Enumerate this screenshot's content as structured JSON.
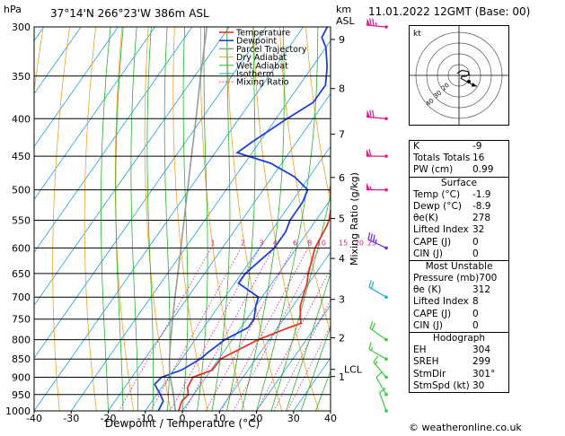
{
  "header": {
    "pressure_unit": "hPa",
    "location": "37°14'N  266°23'W  386m  ASL",
    "height_unit": "km",
    "height_unit2": "ASL",
    "datetime": "11.01.2022  12GMT  (Base: 00)"
  },
  "chart_data": {
    "type": "line",
    "xlabel": "Dewpoint / Temperature (°C)",
    "ylabel_left": "hPa",
    "ylabel_right": "Mixing Ratio (g/kg)",
    "xlim": [
      -40,
      40
    ],
    "ylim": [
      1000,
      300
    ],
    "x_ticks": [
      -40,
      -30,
      -20,
      -10,
      0,
      10,
      20,
      30,
      40
    ],
    "pressure_levels": [
      300,
      350,
      400,
      450,
      500,
      550,
      600,
      650,
      700,
      750,
      800,
      850,
      900,
      950,
      1000
    ],
    "km_ticks": [
      {
        "label": "9",
        "p": 312
      },
      {
        "label": "8",
        "p": 364
      },
      {
        "label": "7",
        "p": 420
      },
      {
        "label": "6",
        "p": 481
      },
      {
        "label": "5",
        "p": 547
      },
      {
        "label": "4",
        "p": 620
      },
      {
        "label": "3",
        "p": 705
      },
      {
        "label": "2",
        "p": 795
      },
      {
        "label": "1",
        "p": 898
      }
    ],
    "lcl": {
      "label": "LCL",
      "p": 878
    },
    "mixing_ratio_labels": [
      "1",
      "2",
      "3",
      "4",
      "6",
      "8",
      "10",
      "15",
      "20",
      "25"
    ],
    "mixing_ratio_values": [
      1,
      2,
      3,
      4,
      6,
      8,
      10,
      15,
      20,
      25
    ],
    "legend": [
      "Temperature",
      "Dewpoint",
      "Parcel Trajectory",
      "Dry Adiabat",
      "Wet Adiabat",
      "Isotherm",
      "Mixing Ratio"
    ],
    "legend_position": "top-center",
    "series": [
      {
        "name": "Temperature",
        "color": "#e8362a",
        "points": [
          [
            1000,
            -1.0
          ],
          [
            970,
            -2.0
          ],
          [
            950,
            -1.5
          ],
          [
            930,
            -3.0
          ],
          [
            900,
            -3.5
          ],
          [
            880,
            0.3
          ],
          [
            860,
            0.5
          ],
          [
            850,
            0.5
          ],
          [
            830,
            3.0
          ],
          [
            800,
            7.0
          ],
          [
            770,
            13.0
          ],
          [
            760,
            15.5
          ],
          [
            750,
            14.5
          ],
          [
            720,
            12.0
          ],
          [
            700,
            11.0
          ],
          [
            670,
            9.5
          ],
          [
            650,
            8.0
          ],
          [
            600,
            5.0
          ],
          [
            560,
            4.0
          ],
          [
            550,
            3.5
          ],
          [
            520,
            1.0
          ],
          [
            500,
            -2.0
          ],
          [
            450,
            -6.0
          ],
          [
            420,
            -8.0
          ],
          [
            400,
            -11.0
          ],
          [
            350,
            -17.5
          ],
          [
            320,
            -23.0
          ],
          [
            300,
            -27.0
          ]
        ]
      },
      {
        "name": "Dewpoint",
        "color": "#1e3fd6",
        "points": [
          [
            1000,
            -6.5
          ],
          [
            970,
            -7.0
          ],
          [
            950,
            -9.0
          ],
          [
            920,
            -12.5
          ],
          [
            900,
            -12.0
          ],
          [
            880,
            -8.0
          ],
          [
            860,
            -6.0
          ],
          [
            850,
            -5.0
          ],
          [
            830,
            -4.0
          ],
          [
            800,
            -2.0
          ],
          [
            770,
            2.0
          ],
          [
            750,
            2.0
          ],
          [
            720,
            0.0
          ],
          [
            700,
            -1.0
          ],
          [
            670,
            -9.0
          ],
          [
            650,
            -9.0
          ],
          [
            600,
            -6.0
          ],
          [
            570,
            -6.0
          ],
          [
            550,
            -7.0
          ],
          [
            520,
            -7.0
          ],
          [
            500,
            -8.0
          ],
          [
            480,
            -14.0
          ],
          [
            460,
            -23.0
          ],
          [
            445,
            -34.0
          ],
          [
            430,
            -32.0
          ],
          [
            400,
            -27.0
          ],
          [
            380,
            -23.0
          ],
          [
            360,
            -23.0
          ],
          [
            340,
            -26.0
          ],
          [
            320,
            -30.0
          ],
          [
            310,
            -33.0
          ],
          [
            300,
            -33.5
          ]
        ]
      },
      {
        "name": "Parcel Trajectory",
        "color": "#9a9a9a",
        "points": [
          [
            1000,
            -1.9
          ],
          [
            950,
            -5.5
          ],
          [
            900,
            -9.6
          ],
          [
            878,
            -11.3
          ],
          [
            850,
            -13.3
          ],
          [
            800,
            -16.6
          ],
          [
            750,
            -20.0
          ],
          [
            700,
            -23.5
          ],
          [
            650,
            -27.2
          ],
          [
            600,
            -31.2
          ],
          [
            550,
            -35.6
          ],
          [
            500,
            -40.4
          ],
          [
            450,
            -45.7
          ],
          [
            400,
            -51.6
          ],
          [
            350,
            -58.4
          ],
          [
            300,
            -66.0
          ]
        ]
      }
    ],
    "wind_profile": [
      {
        "p": 300,
        "dir": 275,
        "spd": 75
      },
      {
        "p": 400,
        "dir": 275,
        "spd": 70
      },
      {
        "p": 450,
        "dir": 270,
        "spd": 60
      },
      {
        "p": 500,
        "dir": 270,
        "spd": 55
      },
      {
        "p": 600,
        "dir": 295,
        "spd": 35
      },
      {
        "p": 700,
        "dir": 300,
        "spd": 20
      },
      {
        "p": 800,
        "dir": 305,
        "spd": 20
      },
      {
        "p": 850,
        "dir": 300,
        "spd": 15
      },
      {
        "p": 900,
        "dir": 320,
        "spd": 15
      },
      {
        "p": 950,
        "dir": 330,
        "spd": 10
      },
      {
        "p": 1000,
        "dir": 340,
        "spd": 10
      }
    ]
  },
  "hodograph": {
    "unit_label": "kt",
    "ring_labels": [
      "20",
      "30",
      "40"
    ],
    "trace": [
      [
        -2,
        2
      ],
      [
        3,
        5
      ],
      [
        9,
        4
      ],
      [
        10,
        1
      ],
      [
        7,
        -1
      ],
      [
        3,
        -1
      ],
      [
        2,
        -3
      ],
      [
        9,
        -7
      ],
      [
        15,
        -10
      ],
      [
        18,
        -11
      ]
    ]
  },
  "indices": {
    "rows": [
      {
        "k": "K",
        "v": "-9"
      },
      {
        "k": "Totals Totals",
        "v": "16"
      },
      {
        "k": "PW (cm)",
        "v": "0.99"
      }
    ]
  },
  "surface": {
    "title": "Surface",
    "rows": [
      {
        "k": "Temp (°C)",
        "v": "-1.9"
      },
      {
        "k": "Dewp (°C)",
        "v": "-8.9"
      },
      {
        "k": "θe(K)",
        "v": "278"
      },
      {
        "k": "Lifted Index",
        "v": "32"
      },
      {
        "k": "CAPE (J)",
        "v": "0"
      },
      {
        "k": "CIN (J)",
        "v": "0"
      }
    ]
  },
  "most_unstable": {
    "title": "Most Unstable",
    "rows": [
      {
        "k": "Pressure (mb)",
        "v": "700"
      },
      {
        "k": "θe (K)",
        "v": "312"
      },
      {
        "k": "Lifted Index",
        "v": "8"
      },
      {
        "k": "CAPE (J)",
        "v": "0"
      },
      {
        "k": "CIN (J)",
        "v": "0"
      }
    ]
  },
  "hodograph_table": {
    "title": "Hodograph",
    "rows": [
      {
        "k": "EH",
        "v": "304"
      },
      {
        "k": "SREH",
        "v": "299"
      },
      {
        "k": "StmDir",
        "v": "301°"
      },
      {
        "k": "StmSpd (kt)",
        "v": "30"
      }
    ]
  },
  "credit": "© weatheronline.co.uk",
  "colors": {
    "temperature": "#e8362a",
    "dewpoint": "#1e3fd6",
    "parcel": "#9a9a9a",
    "dry_adiabat": "#f0a028",
    "wet_adiabat": "#28b428",
    "isotherm": "#1ea0e6",
    "mixing_ratio": "#e0188a"
  }
}
